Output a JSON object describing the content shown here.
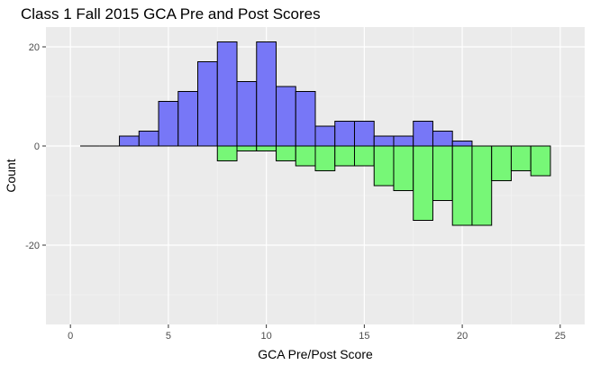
{
  "chart_data": {
    "type": "bar",
    "title": "Class 1 Fall 2015 GCA Pre and Post Scores",
    "xlabel": "GCA Pre/Post Score",
    "ylabel": "Count",
    "xlim": [
      -1.25,
      26.25
    ],
    "ylim": [
      -36,
      24
    ],
    "xticks": [
      0,
      5,
      10,
      15,
      20,
      25
    ],
    "yticks": [
      -20,
      0,
      20
    ],
    "bin_width": 1,
    "series": [
      {
        "color": "#7777F7",
        "x": [
          1,
          2,
          3,
          4,
          5,
          6,
          7,
          8,
          9,
          10,
          11,
          12,
          13,
          14,
          15,
          16,
          17,
          18,
          19,
          20,
          21,
          22,
          23,
          24
        ],
        "values": [
          0,
          0,
          2,
          3,
          9,
          11,
          17,
          21,
          13,
          21,
          12,
          11,
          4,
          5,
          5,
          2,
          2,
          5,
          3,
          1,
          0,
          0,
          0,
          0
        ]
      },
      {
        "color": "#77F777",
        "x": [
          1,
          2,
          3,
          4,
          5,
          6,
          7,
          8,
          9,
          10,
          11,
          12,
          13,
          14,
          15,
          16,
          17,
          18,
          19,
          20,
          21,
          22,
          23,
          24
        ],
        "values": [
          0,
          0,
          0,
          0,
          0,
          0,
          0,
          -3,
          -1,
          -1,
          -3,
          -4,
          -5,
          -4,
          -4,
          -8,
          -9,
          -15,
          -11,
          -16,
          -16,
          -7,
          -5,
          -6
        ]
      }
    ],
    "grid": true,
    "legend": "none"
  }
}
